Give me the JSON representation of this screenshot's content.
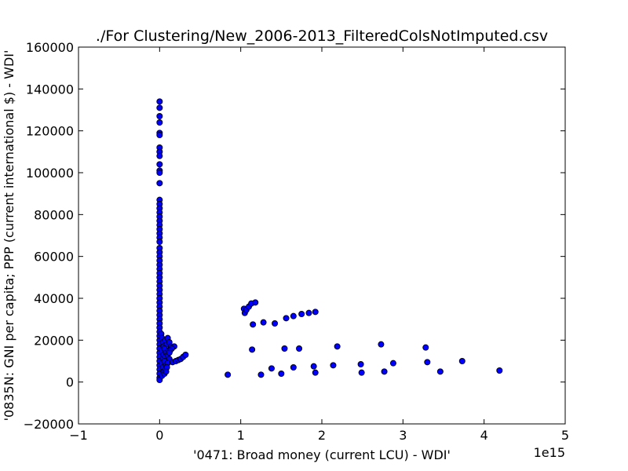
{
  "chart_data": {
    "type": "scatter",
    "title": "./For Clustering/New_2006-2013_FilteredColsNotImputed.csv",
    "xlabel": "'0471: Broad money  (current LCU) - WDI'",
    "ylabel": "'0835N: GNI per capita; PPP  (current international $) - WDI'",
    "x_offset_label": "1e15",
    "xlim": [
      -1,
      5
    ],
    "ylim": [
      -20000,
      160000
    ],
    "x_ticks": [
      "−1",
      "0",
      "1",
      "2",
      "3",
      "4",
      "5"
    ],
    "y_ticks": [
      "−20000",
      "0",
      "20000",
      "40000",
      "60000",
      "80000",
      "100000",
      "120000",
      "140000",
      "160000"
    ],
    "grid": false,
    "marker_color": "#0000ff",
    "points": [
      [
        0,
        134000
      ],
      [
        0,
        131000
      ],
      [
        0,
        127000
      ],
      [
        0,
        124000
      ],
      [
        0,
        119000
      ],
      [
        0,
        118000
      ],
      [
        0,
        112000
      ],
      [
        0,
        110000
      ],
      [
        0,
        108000
      ],
      [
        0,
        104000
      ],
      [
        0,
        101000
      ],
      [
        0,
        100000
      ],
      [
        0,
        95000
      ],
      [
        0,
        87000
      ],
      [
        0,
        85000
      ],
      [
        0,
        83000
      ],
      [
        0,
        81000
      ],
      [
        0,
        79000
      ],
      [
        0,
        77000
      ],
      [
        0,
        75000
      ],
      [
        0,
        73000
      ],
      [
        0,
        71000
      ],
      [
        0,
        69000
      ],
      [
        0,
        67000
      ],
      [
        0,
        64000
      ],
      [
        0,
        62000
      ],
      [
        0,
        60000
      ],
      [
        0,
        58000
      ],
      [
        0,
        56000
      ],
      [
        0,
        54000
      ],
      [
        0,
        52000
      ],
      [
        0,
        50000
      ],
      [
        0,
        48000
      ],
      [
        0,
        46000
      ],
      [
        0,
        44000
      ],
      [
        0,
        42000
      ],
      [
        0,
        40000
      ],
      [
        0,
        38000
      ],
      [
        0,
        36000
      ],
      [
        0,
        34000
      ],
      [
        0,
        32000
      ],
      [
        0,
        30000
      ],
      [
        0,
        28000
      ],
      [
        0,
        26000
      ],
      [
        0,
        24000
      ],
      [
        0,
        22000
      ],
      [
        0,
        20000
      ],
      [
        0,
        18000
      ],
      [
        0,
        16000
      ],
      [
        0,
        14000
      ],
      [
        0,
        12000
      ],
      [
        0,
        10000
      ],
      [
        0,
        8000
      ],
      [
        0,
        6000
      ],
      [
        0,
        4000
      ],
      [
        0,
        2000
      ],
      [
        0,
        1000
      ],
      [
        0.02,
        23000
      ],
      [
        0.03,
        21000
      ],
      [
        0.04,
        19000
      ],
      [
        0.05,
        17000
      ],
      [
        0.03,
        15000
      ],
      [
        0.05,
        13000
      ],
      [
        0.04,
        11000
      ],
      [
        0.03,
        9000
      ],
      [
        0.04,
        7000
      ],
      [
        0.05,
        5000
      ],
      [
        0.03,
        3000
      ],
      [
        0.07,
        20000
      ],
      [
        0.09,
        18000
      ],
      [
        0.06,
        16000
      ],
      [
        0.08,
        14000
      ],
      [
        0.07,
        12000
      ],
      [
        0.06,
        10000
      ],
      [
        0.08,
        8000
      ],
      [
        0.07,
        6000
      ],
      [
        0.06,
        4000
      ],
      [
        0.1,
        21000
      ],
      [
        0.12,
        19000
      ],
      [
        0.14,
        17000
      ],
      [
        0.11,
        15000
      ],
      [
        0.1,
        13000
      ],
      [
        0.12,
        11000
      ],
      [
        0.1,
        9000
      ],
      [
        0.09,
        7000
      ],
      [
        0.08,
        5000
      ],
      [
        0.18,
        17000
      ],
      [
        0.15,
        16000
      ],
      [
        0.13,
        15000
      ],
      [
        0.12,
        14000
      ],
      [
        0.16,
        9500
      ],
      [
        0.2,
        10000
      ],
      [
        0.23,
        10500
      ],
      [
        0.26,
        11000
      ],
      [
        0.29,
        12000
      ],
      [
        0.32,
        13000
      ],
      [
        0.84,
        3500
      ],
      [
        1.04,
        35000
      ],
      [
        1.05,
        33000
      ],
      [
        1.07,
        34500
      ],
      [
        1.1,
        36000
      ],
      [
        1.13,
        37500
      ],
      [
        1.18,
        38000
      ],
      [
        1.15,
        27500
      ],
      [
        1.28,
        28500
      ],
      [
        1.42,
        28000
      ],
      [
        1.56,
        30500
      ],
      [
        1.65,
        31500
      ],
      [
        1.75,
        32500
      ],
      [
        1.84,
        33000
      ],
      [
        1.92,
        33500
      ],
      [
        1.14,
        15500
      ],
      [
        1.54,
        16000
      ],
      [
        1.72,
        16000
      ],
      [
        2.19,
        17000
      ],
      [
        2.73,
        18000
      ],
      [
        3.28,
        16500
      ],
      [
        1.25,
        3500
      ],
      [
        1.38,
        6500
      ],
      [
        1.5,
        4000
      ],
      [
        1.65,
        7000
      ],
      [
        1.9,
        7500
      ],
      [
        1.92,
        4500
      ],
      [
        2.14,
        8000
      ],
      [
        2.48,
        8500
      ],
      [
        2.49,
        4500
      ],
      [
        2.77,
        5000
      ],
      [
        2.88,
        9000
      ],
      [
        3.3,
        9500
      ],
      [
        3.46,
        5000
      ],
      [
        3.73,
        10000
      ],
      [
        4.19,
        5500
      ]
    ]
  }
}
